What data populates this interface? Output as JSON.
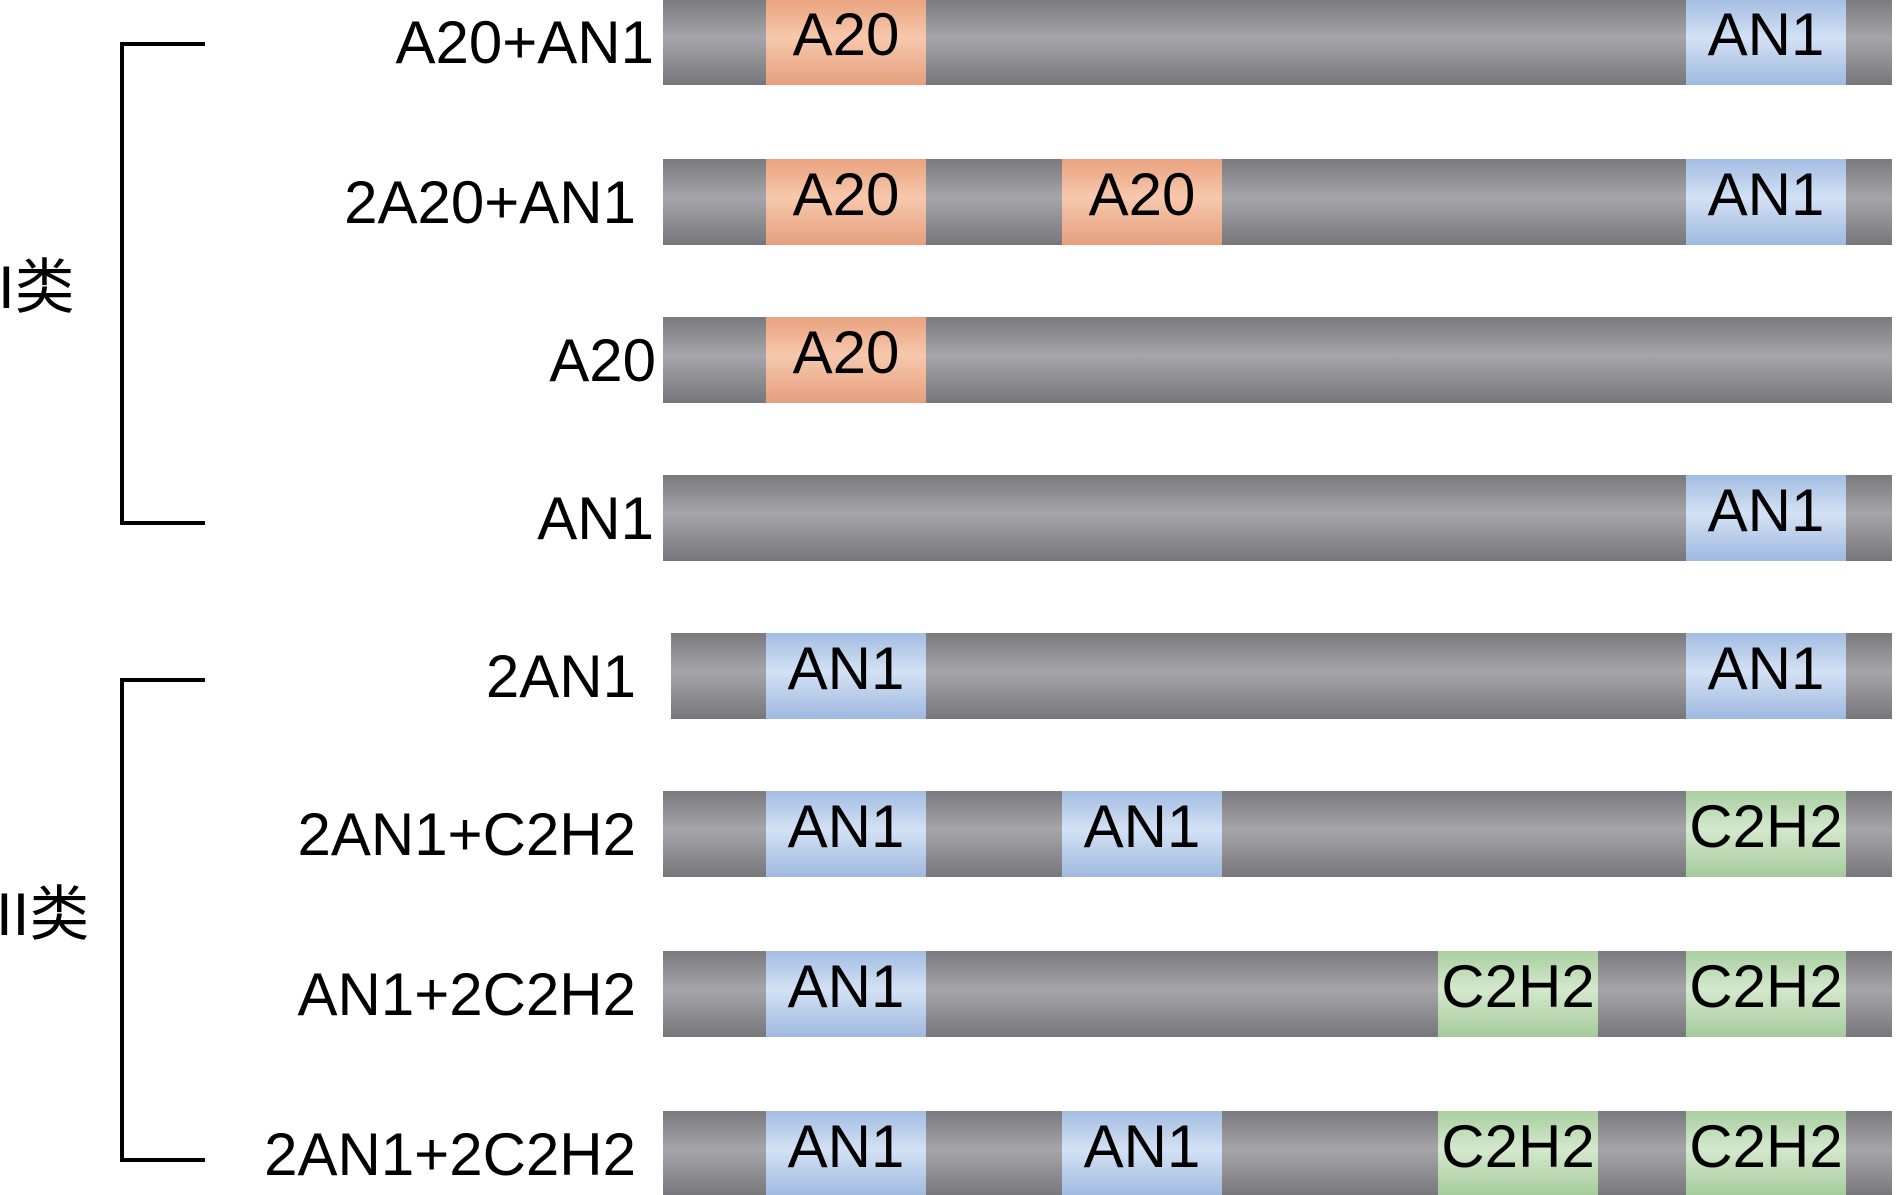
{
  "classes": [
    {
      "label": "I类",
      "rows": [
        0,
        1,
        2,
        3
      ]
    },
    {
      "label": "II类",
      "rows": [
        4,
        5,
        6,
        7
      ]
    }
  ],
  "colors": {
    "bar": "#8c8b90",
    "A20": "#f1b594",
    "AN1": "#b4c9e9",
    "C2H2": "#bcd9b4"
  },
  "rows": [
    {
      "name": "A20+AN1",
      "domains": [
        "A20",
        "AN1"
      ]
    },
    {
      "name": "2A20+AN1",
      "domains": [
        "A20",
        "A20",
        "AN1"
      ]
    },
    {
      "name": "A20",
      "domains": [
        "A20"
      ]
    },
    {
      "name": "AN1",
      "domains": [
        "AN1"
      ]
    },
    {
      "name": "2AN1",
      "domains": [
        "AN1",
        "AN1"
      ]
    },
    {
      "name": "2AN1+C2H2",
      "domains": [
        "AN1",
        "AN1",
        "C2H2"
      ]
    },
    {
      "name": "AN1+2C2H2",
      "domains": [
        "AN1",
        "C2H2",
        "C2H2"
      ]
    },
    {
      "name": "2AN1+2C2H2",
      "domains": [
        "AN1",
        "AN1",
        "C2H2",
        "C2H2"
      ]
    }
  ]
}
